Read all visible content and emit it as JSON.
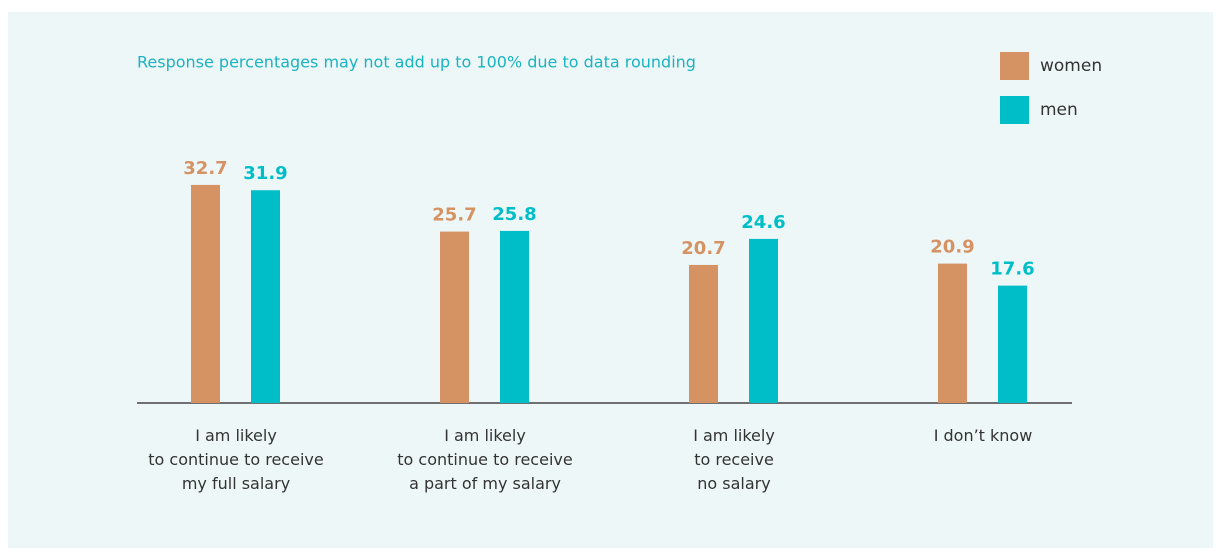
{
  "chart_data": {
    "type": "bar",
    "subtitle": "Response percentages may not add up to 100% due to data rounding",
    "categories": [
      "I am likely\nto continue to receive\nmy full salary",
      "I am likely\nto continue to receive\na part of my salary",
      "I am likely\nto receive\nno salary",
      "I don’t know"
    ],
    "series": [
      {
        "name": "women",
        "color": "#d59263",
        "values": [
          32.7,
          25.7,
          20.7,
          20.9
        ]
      },
      {
        "name": "men",
        "color": "#00bec8",
        "values": [
          31.9,
          25.8,
          24.6,
          17.6
        ]
      }
    ],
    "legend": "top-right"
  }
}
